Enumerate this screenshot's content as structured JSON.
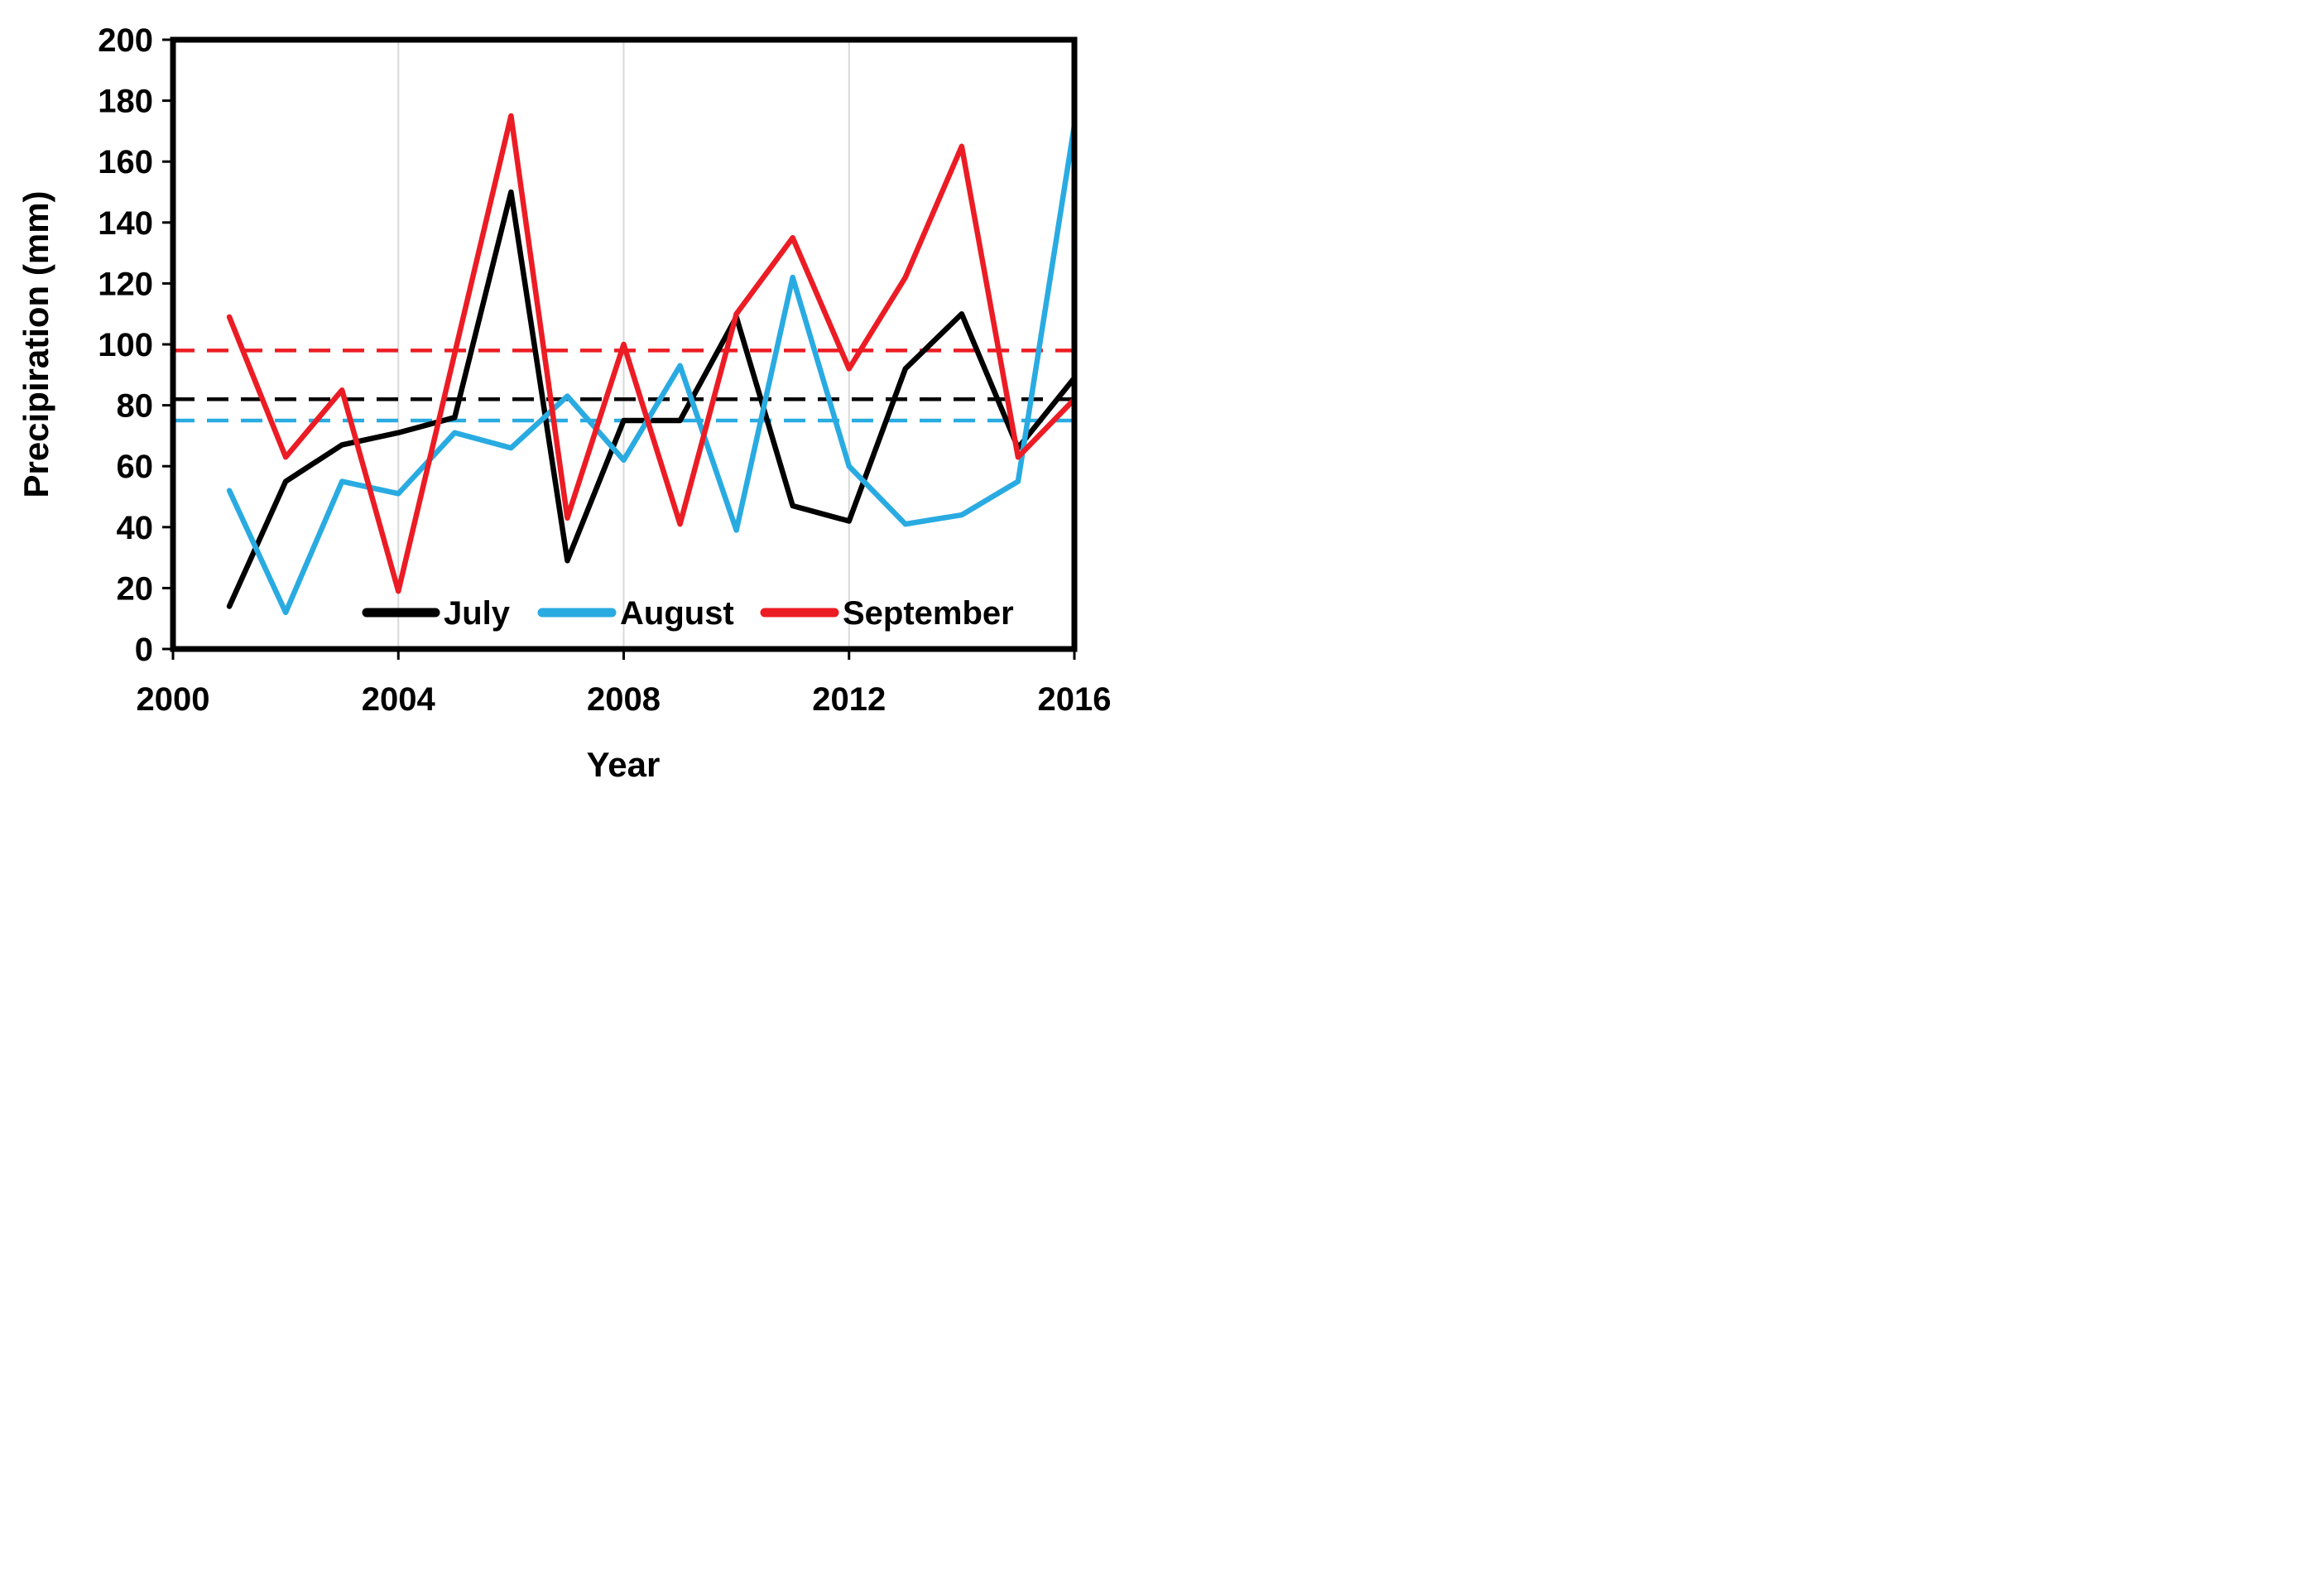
{
  "chart_data": {
    "type": "line",
    "title": "",
    "xlabel": "Year",
    "ylabel": "Precipiration (mm)",
    "xlim": [
      2000,
      2016
    ],
    "ylim": [
      0,
      200
    ],
    "x_ticks": [
      2000,
      2004,
      2008,
      2012,
      2016
    ],
    "y_ticks": [
      0,
      20,
      40,
      60,
      80,
      100,
      120,
      140,
      160,
      180,
      200
    ],
    "gridlines_x": [
      2004,
      2008,
      2012
    ],
    "grid": "vertical-only",
    "years": [
      2001,
      2002,
      2003,
      2004,
      2005,
      2006,
      2007,
      2008,
      2009,
      2010,
      2011,
      2012,
      2013,
      2014,
      2015,
      2016
    ],
    "series": [
      {
        "name": "July",
        "color": "#000000",
        "values": [
          14,
          55,
          67,
          71,
          76,
          150,
          29,
          75,
          75,
          109,
          47,
          42,
          92,
          110,
          66,
          89
        ]
      },
      {
        "name": "August",
        "color": "#29abe2",
        "values": [
          52,
          12,
          55,
          51,
          71,
          66,
          83,
          62,
          93,
          39,
          122,
          60,
          41,
          44,
          55,
          172
        ]
      },
      {
        "name": "September",
        "color": "#ec1c24",
        "values": [
          109,
          63,
          85,
          19,
          97,
          175,
          43,
          100,
          41,
          110,
          135,
          92,
          122,
          165,
          63,
          82
        ]
      }
    ],
    "mean_lines": [
      {
        "series": "September",
        "color": "#ec1c24",
        "value": 98,
        "style": "dashed"
      },
      {
        "series": "July",
        "color": "#000000",
        "value": 82,
        "style": "dashed"
      },
      {
        "series": "August",
        "color": "#29abe2",
        "value": 75,
        "style": "dashed"
      }
    ],
    "legend": {
      "position": "bottom-inside",
      "items": [
        "July",
        "August",
        "September"
      ]
    },
    "colors": {
      "axis": "#000000",
      "gridline": "#d9d9d9",
      "background": "#ffffff"
    }
  }
}
